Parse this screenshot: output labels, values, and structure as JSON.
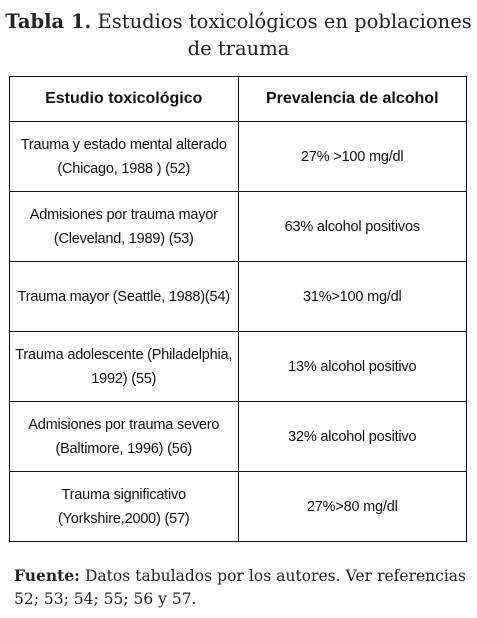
{
  "caption": {
    "label": "Tabla 1.",
    "text": "Estudios toxicológicos en poblaciones de trauma"
  },
  "table": {
    "headers": [
      "Estudio toxicológico",
      "Prevalencia de alcohol"
    ],
    "rows": [
      [
        "Trauma y estado mental alterado (Chicago, 1988 ) (52)",
        "27% >100 mg/dl"
      ],
      [
        "Admisiones por trauma mayor (Cleveland, 1989) (53)",
        "63% alcohol positivos"
      ],
      [
        "Trauma mayor (Seattle, 1988)(54)",
        "31%>100 mg/dl"
      ],
      [
        "Trauma adolescente (Philadelphia, 1992) (55)",
        "13% alcohol positivo"
      ],
      [
        "Admisiones por trauma severo (Baltimore, 1996) (56)",
        "32% alcohol positivo"
      ],
      [
        "Trauma significativo (Yorkshire,2000) (57)",
        "27%>80 mg/dl"
      ]
    ]
  },
  "source": {
    "label": "Fuente:",
    "text": "Datos tabulados por los autores. Ver referencias 52; 53; 54; 55; 56 y 57."
  }
}
